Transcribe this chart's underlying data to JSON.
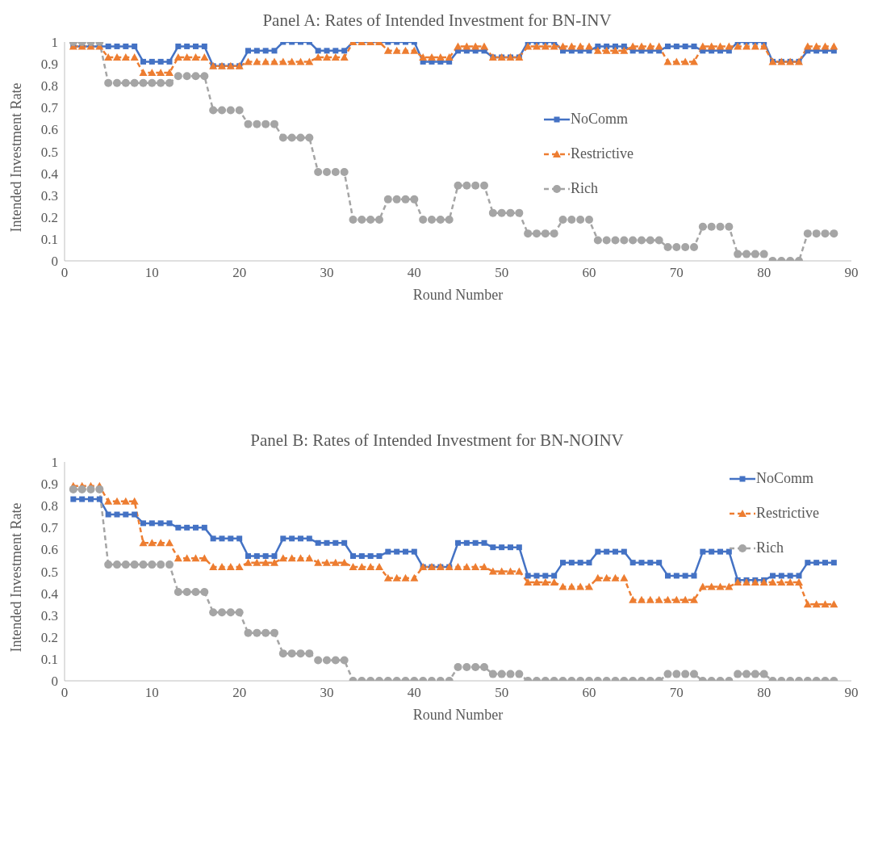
{
  "chart_data": [
    {
      "type": "line",
      "title": "Panel A: Rates of Intended Investment for BN-INV",
      "xlabel": "Round Number",
      "ylabel": "Intended Investment Rate",
      "x": [
        1,
        2,
        3,
        4,
        5,
        6,
        7,
        8,
        9,
        10,
        11,
        12,
        13,
        14,
        15,
        16,
        17,
        18,
        19,
        20,
        21,
        22,
        23,
        24,
        25,
        26,
        27,
        28,
        29,
        30,
        31,
        32,
        33,
        34,
        35,
        36,
        37,
        38,
        39,
        40,
        41,
        42,
        43,
        44,
        45,
        46,
        47,
        48,
        49,
        50,
        51,
        52,
        53,
        54,
        55,
        56,
        57,
        58,
        59,
        60,
        61,
        62,
        63,
        64,
        65,
        66,
        67,
        68,
        69,
        70,
        71,
        72,
        73,
        74,
        75,
        76,
        77,
        78,
        79,
        80,
        81,
        82,
        83,
        84,
        85,
        86,
        87,
        88
      ],
      "xlim": [
        0,
        90
      ],
      "xticks": [
        0,
        10,
        20,
        30,
        40,
        50,
        60,
        70,
        80,
        90
      ],
      "ylim": [
        0,
        1
      ],
      "yticks": [
        0,
        0.1,
        0.2,
        0.3,
        0.4,
        0.5,
        0.6,
        0.7,
        0.8,
        0.9,
        1
      ],
      "legend": "right",
      "series": [
        {
          "name": "NoComm",
          "color": "#4472c4",
          "marker": "square",
          "line_style": "solid",
          "values": [
            0.98,
            0.98,
            0.98,
            0.98,
            0.98,
            0.98,
            0.98,
            0.98,
            0.91,
            0.91,
            0.91,
            0.91,
            0.98,
            0.98,
            0.98,
            0.98,
            0.89,
            0.89,
            0.89,
            0.89,
            0.96,
            0.96,
            0.96,
            0.96,
            1,
            1,
            1,
            1,
            0.96,
            0.96,
            0.96,
            0.96,
            1,
            1,
            1,
            1,
            1,
            1,
            1,
            1,
            0.91,
            0.91,
            0.91,
            0.91,
            0.96,
            0.96,
            0.96,
            0.96,
            0.93,
            0.93,
            0.93,
            0.93,
            1,
            1,
            1,
            1,
            0.96,
            0.96,
            0.96,
            0.96,
            0.98,
            0.98,
            0.98,
            0.98,
            0.96,
            0.96,
            0.96,
            0.96,
            0.98,
            0.98,
            0.98,
            0.98,
            0.96,
            0.96,
            0.96,
            0.96,
            1,
            1,
            1,
            1,
            0.91,
            0.91,
            0.91,
            0.91,
            0.96,
            0.96,
            0.96,
            0.96
          ]
        },
        {
          "name": "Restrictive",
          "color": "#ed7d31",
          "marker": "triangle",
          "line_style": "dashed",
          "values": [
            0.98,
            0.98,
            0.98,
            0.98,
            0.93,
            0.93,
            0.93,
            0.93,
            0.86,
            0.86,
            0.86,
            0.86,
            0.93,
            0.93,
            0.93,
            0.93,
            0.89,
            0.89,
            0.89,
            0.89,
            0.91,
            0.91,
            0.91,
            0.91,
            0.91,
            0.91,
            0.91,
            0.91,
            0.93,
            0.93,
            0.93,
            0.93,
            1,
            1,
            1,
            1,
            0.96,
            0.96,
            0.96,
            0.96,
            0.93,
            0.93,
            0.93,
            0.93,
            0.98,
            0.98,
            0.98,
            0.98,
            0.93,
            0.93,
            0.93,
            0.93,
            0.98,
            0.98,
            0.98,
            0.98,
            0.98,
            0.98,
            0.98,
            0.98,
            0.96,
            0.96,
            0.96,
            0.96,
            0.98,
            0.98,
            0.98,
            0.98,
            0.91,
            0.91,
            0.91,
            0.91,
            0.98,
            0.98,
            0.98,
            0.98,
            0.98,
            0.98,
            0.98,
            0.98,
            0.91,
            0.91,
            0.91,
            0.91,
            0.98,
            0.98,
            0.98,
            0.98
          ]
        },
        {
          "name": "Rich",
          "color": "#a5a5a5",
          "marker": "circle",
          "line_style": "dashed",
          "values": [
            1,
            1,
            1,
            1,
            0.813,
            0.813,
            0.813,
            0.813,
            0.813,
            0.813,
            0.813,
            0.813,
            0.844,
            0.844,
            0.844,
            0.844,
            0.688,
            0.688,
            0.688,
            0.688,
            0.625,
            0.625,
            0.625,
            0.625,
            0.563,
            0.563,
            0.563,
            0.563,
            0.406,
            0.406,
            0.406,
            0.406,
            0.188,
            0.188,
            0.188,
            0.188,
            0.281,
            0.281,
            0.281,
            0.281,
            0.188,
            0.188,
            0.188,
            0.188,
            0.344,
            0.344,
            0.344,
            0.344,
            0.219,
            0.219,
            0.219,
            0.219,
            0.125,
            0.125,
            0.125,
            0.125,
            0.188,
            0.188,
            0.188,
            0.188,
            0.094,
            0.094,
            0.094,
            0.094,
            0.094,
            0.094,
            0.094,
            0.094,
            0.063,
            0.063,
            0.063,
            0.063,
            0.156,
            0.156,
            0.156,
            0.156,
            0.031,
            0.031,
            0.031,
            0.031,
            0,
            0,
            0,
            0,
            0.125,
            0.125,
            0.125,
            0.125
          ]
        }
      ]
    },
    {
      "type": "line",
      "title": "Panel B: Rates of Intended Investment for BN-NOINV",
      "xlabel": "Round Number",
      "ylabel": "Intended Investment Rate",
      "x": [
        1,
        2,
        3,
        4,
        5,
        6,
        7,
        8,
        9,
        10,
        11,
        12,
        13,
        14,
        15,
        16,
        17,
        18,
        19,
        20,
        21,
        22,
        23,
        24,
        25,
        26,
        27,
        28,
        29,
        30,
        31,
        32,
        33,
        34,
        35,
        36,
        37,
        38,
        39,
        40,
        41,
        42,
        43,
        44,
        45,
        46,
        47,
        48,
        49,
        50,
        51,
        52,
        53,
        54,
        55,
        56,
        57,
        58,
        59,
        60,
        61,
        62,
        63,
        64,
        65,
        66,
        67,
        68,
        69,
        70,
        71,
        72,
        73,
        74,
        75,
        76,
        77,
        78,
        79,
        80,
        81,
        82,
        83,
        84,
        85,
        86,
        87,
        88
      ],
      "xlim": [
        0,
        90
      ],
      "xticks": [
        0,
        10,
        20,
        30,
        40,
        50,
        60,
        70,
        80,
        90
      ],
      "ylim": [
        0,
        1
      ],
      "yticks": [
        0,
        0.1,
        0.2,
        0.3,
        0.4,
        0.5,
        0.6,
        0.7,
        0.8,
        0.9,
        1
      ],
      "legend": "top right",
      "series": [
        {
          "name": "NoComm",
          "color": "#4472c4",
          "marker": "square",
          "line_style": "solid",
          "values": [
            0.83,
            0.83,
            0.83,
            0.83,
            0.76,
            0.76,
            0.76,
            0.76,
            0.72,
            0.72,
            0.72,
            0.72,
            0.7,
            0.7,
            0.7,
            0.7,
            0.65,
            0.65,
            0.65,
            0.65,
            0.57,
            0.57,
            0.57,
            0.57,
            0.65,
            0.65,
            0.65,
            0.65,
            0.63,
            0.63,
            0.63,
            0.63,
            0.57,
            0.57,
            0.57,
            0.57,
            0.59,
            0.59,
            0.59,
            0.59,
            0.52,
            0.52,
            0.52,
            0.52,
            0.63,
            0.63,
            0.63,
            0.63,
            0.61,
            0.61,
            0.61,
            0.61,
            0.48,
            0.48,
            0.48,
            0.48,
            0.54,
            0.54,
            0.54,
            0.54,
            0.59,
            0.59,
            0.59,
            0.59,
            0.54,
            0.54,
            0.54,
            0.54,
            0.48,
            0.48,
            0.48,
            0.48,
            0.59,
            0.59,
            0.59,
            0.59,
            0.46,
            0.46,
            0.46,
            0.46,
            0.48,
            0.48,
            0.48,
            0.48,
            0.54,
            0.54,
            0.54,
            0.54
          ]
        },
        {
          "name": "Restrictive",
          "color": "#ed7d31",
          "marker": "triangle",
          "line_style": "dashed",
          "values": [
            0.89,
            0.89,
            0.89,
            0.89,
            0.82,
            0.82,
            0.82,
            0.82,
            0.63,
            0.63,
            0.63,
            0.63,
            0.56,
            0.56,
            0.56,
            0.56,
            0.52,
            0.52,
            0.52,
            0.52,
            0.54,
            0.54,
            0.54,
            0.54,
            0.56,
            0.56,
            0.56,
            0.56,
            0.54,
            0.54,
            0.54,
            0.54,
            0.52,
            0.52,
            0.52,
            0.52,
            0.47,
            0.47,
            0.47,
            0.47,
            0.52,
            0.52,
            0.52,
            0.52,
            0.52,
            0.52,
            0.52,
            0.52,
            0.5,
            0.5,
            0.5,
            0.5,
            0.45,
            0.45,
            0.45,
            0.45,
            0.43,
            0.43,
            0.43,
            0.43,
            0.47,
            0.47,
            0.47,
            0.47,
            0.37,
            0.37,
            0.37,
            0.37,
            0.37,
            0.37,
            0.37,
            0.37,
            0.43,
            0.43,
            0.43,
            0.43,
            0.45,
            0.45,
            0.45,
            0.45,
            0.45,
            0.45,
            0.45,
            0.45,
            0.35,
            0.35,
            0.35,
            0.35
          ]
        },
        {
          "name": "Rich",
          "color": "#a5a5a5",
          "marker": "circle",
          "line_style": "dashed",
          "values": [
            0.875,
            0.875,
            0.875,
            0.875,
            0.531,
            0.531,
            0.531,
            0.531,
            0.531,
            0.531,
            0.531,
            0.531,
            0.406,
            0.406,
            0.406,
            0.406,
            0.313,
            0.313,
            0.313,
            0.313,
            0.219,
            0.219,
            0.219,
            0.219,
            0.125,
            0.125,
            0.125,
            0.125,
            0.094,
            0.094,
            0.094,
            0.094,
            0,
            0,
            0,
            0,
            0,
            0,
            0,
            0,
            0,
            0,
            0,
            0,
            0.063,
            0.063,
            0.063,
            0.063,
            0.031,
            0.031,
            0.031,
            0.031,
            0,
            0,
            0,
            0,
            0,
            0,
            0,
            0,
            0,
            0,
            0,
            0,
            0,
            0,
            0,
            0,
            0.031,
            0.031,
            0.031,
            0.031,
            0,
            0,
            0,
            0,
            0.031,
            0.031,
            0.031,
            0.031,
            0,
            0,
            0,
            0,
            0,
            0,
            0,
            0
          ]
        }
      ]
    }
  ]
}
